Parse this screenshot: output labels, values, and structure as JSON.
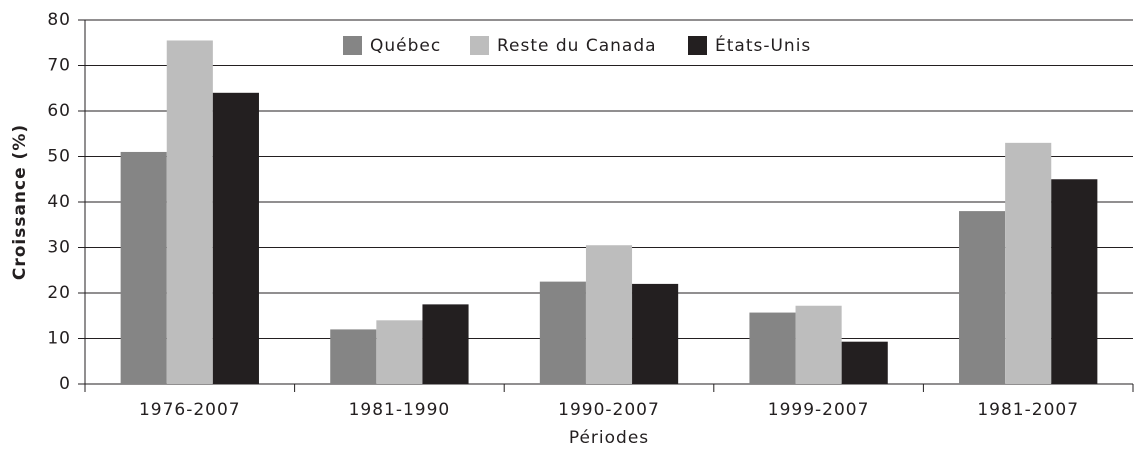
{
  "chart_data": {
    "type": "bar",
    "categories": [
      "1976-2007",
      "1981-1990",
      "1990-2007",
      "1999-2007",
      "1981-2007"
    ],
    "series": [
      {
        "name": "Québec",
        "color": "#858585",
        "values": [
          51,
          12,
          22.5,
          15.7,
          38
        ]
      },
      {
        "name": "Reste du Canada",
        "color": "#bdbdbd",
        "values": [
          75.5,
          14,
          30.5,
          17.2,
          53
        ]
      },
      {
        "name": "États-Unis",
        "color": "#231f20",
        "values": [
          64,
          17.5,
          22,
          9.3,
          45
        ]
      }
    ],
    "x_label": "Périodes",
    "y_label": "Croissance (%)",
    "ylim": [
      0,
      80
    ],
    "yticks": [
      0,
      10,
      20,
      30,
      40,
      50,
      60,
      70,
      80
    ],
    "grid": true,
    "legend": "top"
  }
}
